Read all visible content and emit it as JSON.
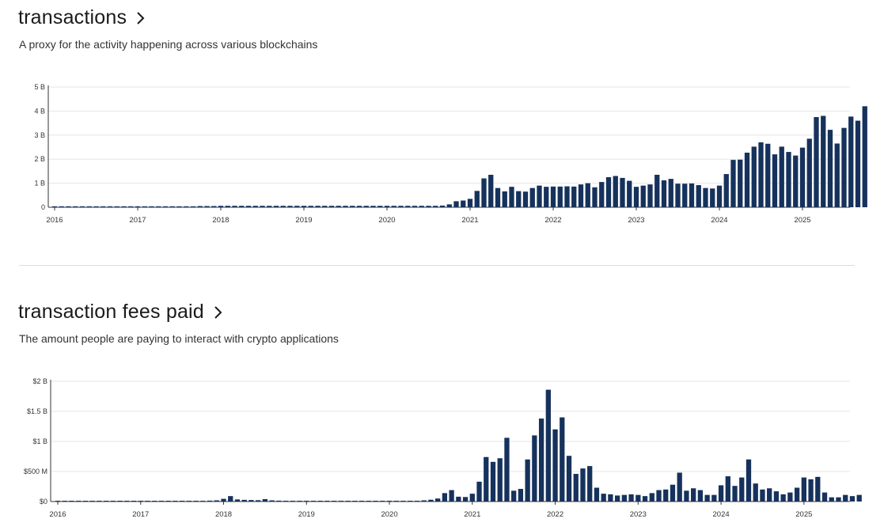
{
  "sections": [
    {
      "title": "transactions",
      "subtitle": "A proxy for the activity happening across various blockchains",
      "chevron_icon": "chevron-right-icon"
    },
    {
      "title": "transaction fees paid",
      "subtitle": "The amount people are paying to interact with crypto applications",
      "chevron_icon": "chevron-right-icon"
    }
  ],
  "colors": {
    "bar": "#16325c",
    "grid": "#e6e6e6",
    "axis": "#333333"
  },
  "chart_data": [
    {
      "type": "bar",
      "title": "transactions",
      "xlabel": "",
      "ylabel": "",
      "ylim": [
        0,
        5
      ],
      "y_unit": "billions",
      "yticks": [
        0,
        1,
        2,
        3,
        4,
        5
      ],
      "ytick_labels": [
        "0",
        "1 B",
        "2 B",
        "3 B",
        "4 B",
        "5 B"
      ],
      "x_start": "2016-01",
      "xtick_labels": [
        "2016",
        "2017",
        "2018",
        "2019",
        "2020",
        "2021",
        "2022",
        "2023",
        "2024",
        "2025"
      ],
      "grid": true,
      "values": [
        0.04,
        0.04,
        0.04,
        0.04,
        0.04,
        0.04,
        0.04,
        0.04,
        0.04,
        0.04,
        0.04,
        0.04,
        0.04,
        0.04,
        0.04,
        0.04,
        0.04,
        0.04,
        0.04,
        0.04,
        0.04,
        0.05,
        0.05,
        0.05,
        0.06,
        0.06,
        0.06,
        0.06,
        0.06,
        0.06,
        0.06,
        0.06,
        0.06,
        0.06,
        0.06,
        0.06,
        0.06,
        0.06,
        0.06,
        0.06,
        0.06,
        0.06,
        0.06,
        0.06,
        0.06,
        0.06,
        0.06,
        0.06,
        0.06,
        0.06,
        0.06,
        0.06,
        0.06,
        0.06,
        0.06,
        0.06,
        0.07,
        0.12,
        0.25,
        0.28,
        0.35,
        0.68,
        1.2,
        1.35,
        0.8,
        0.66,
        0.85,
        0.67,
        0.65,
        0.8,
        0.9,
        0.85,
        0.86,
        0.86,
        0.87,
        0.86,
        0.95,
        1.0,
        0.83,
        1.05,
        1.25,
        1.3,
        1.22,
        1.1,
        0.85,
        0.9,
        0.95,
        1.35,
        1.12,
        1.18,
        0.98,
        0.98,
        0.99,
        0.92,
        0.8,
        0.78,
        0.9,
        1.38,
        1.97,
        1.98,
        2.27,
        2.52,
        2.7,
        2.64,
        2.2,
        2.52,
        2.3,
        2.15,
        2.48,
        2.85,
        3.75,
        3.8,
        3.22,
        2.65,
        3.3,
        3.77,
        3.6,
        4.2
      ]
    },
    {
      "type": "bar",
      "title": "transaction fees paid",
      "xlabel": "",
      "ylabel": "",
      "ylim": [
        0,
        2000
      ],
      "y_unit": "millions USD",
      "yticks": [
        0,
        500,
        1000,
        1500,
        2000
      ],
      "ytick_labels": [
        "$0",
        "$500 M",
        "$1 B",
        "$1.5 B",
        "$2 B"
      ],
      "x_start": "2016-01",
      "xtick_labels": [
        "2016",
        "2017",
        "2018",
        "2019",
        "2020",
        "2021",
        "2022",
        "2023",
        "2024",
        "2025"
      ],
      "grid": true,
      "values": [
        3,
        3,
        3,
        3,
        3,
        3,
        3,
        3,
        3,
        3,
        3,
        3,
        3,
        3,
        3,
        3,
        3,
        4,
        5,
        6,
        8,
        10,
        15,
        20,
        45,
        90,
        35,
        28,
        25,
        22,
        40,
        20,
        15,
        12,
        10,
        10,
        8,
        8,
        8,
        8,
        8,
        8,
        8,
        8,
        8,
        8,
        10,
        8,
        8,
        8,
        8,
        10,
        12,
        20,
        30,
        50,
        140,
        190,
        80,
        75,
        130,
        330,
        740,
        660,
        720,
        1060,
        180,
        210,
        700,
        1100,
        1380,
        1860,
        1200,
        1400,
        760,
        460,
        550,
        590,
        230,
        130,
        120,
        100,
        110,
        120,
        110,
        90,
        140,
        190,
        200,
        280,
        480,
        180,
        220,
        190,
        110,
        110,
        270,
        420,
        260,
        400,
        700,
        300,
        200,
        220,
        170,
        120,
        150,
        230,
        400,
        370,
        410,
        150,
        70,
        70,
        110,
        90,
        110
      ]
    }
  ]
}
